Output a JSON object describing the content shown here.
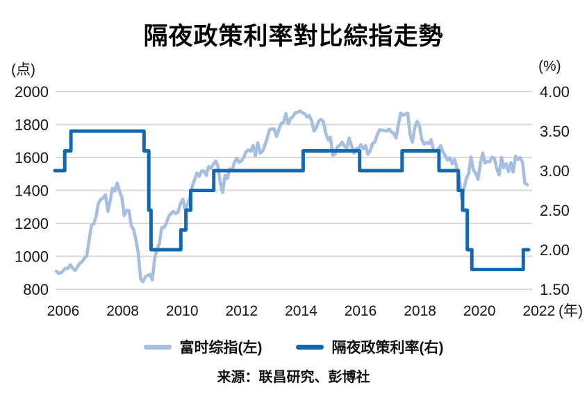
{
  "page": {
    "title": "隔夜政策利率對比綜指走勢",
    "source": "来源：联昌研究、彭博社"
  },
  "chart_data": {
    "type": "line",
    "title": "隔夜政策利率對比綜指走勢",
    "grid": true,
    "grid_color": "#d9d9d9",
    "legend_position": "bottom",
    "source": "来源：联昌研究、彭博社",
    "left_axis": {
      "unit": "(点)",
      "ticks": [
        2000,
        1800,
        1600,
        1400,
        1200,
        1000,
        800
      ],
      "range": [
        800,
        2000
      ]
    },
    "right_axis": {
      "unit": "(%)",
      "ticks": [
        4.0,
        3.5,
        3.0,
        2.5,
        2.0,
        1.5
      ],
      "range": [
        1.5,
        4.0
      ]
    },
    "x_axis": {
      "tick_years": [
        2006,
        2008,
        2010,
        2012,
        2014,
        2016,
        2018,
        2020,
        2022
      ],
      "suffix": "(年)",
      "range": [
        2005.7,
        2022.6
      ]
    },
    "series": [
      {
        "name": "富时综指(左)",
        "axis": "left",
        "type": "line",
        "color": "#a6bedf",
        "x_start": 2005.75,
        "x_step": 0.0833333,
        "values": [
          910,
          897,
          900,
          914,
          928,
          926,
          949,
          927,
          914,
          935,
          958,
          967,
          988,
          1003,
          1096,
          1189,
          1196,
          1246,
          1322,
          1346,
          1354,
          1373,
          1273,
          1336,
          1413,
          1396,
          1445,
          1393,
          1357,
          1247,
          1280,
          1276,
          1186,
          1163,
          1100,
          1018,
          863,
          845,
          876,
          884,
          890,
          857,
          990,
          1044,
          1075,
          1175,
          1174,
          1202,
          1243,
          1259,
          1272,
          1259,
          1270,
          1320,
          1346,
          1285,
          1314,
          1360,
          1422,
          1463,
          1505,
          1485,
          1518,
          1519,
          1491,
          1545,
          1534,
          1558,
          1579,
          1548,
          1447,
          1387,
          1491,
          1472,
          1530,
          1521,
          1569,
          1596,
          1570,
          1580,
          1599,
          1635,
          1646,
          1637,
          1673,
          1610,
          1689,
          1627,
          1637,
          1672,
          1717,
          1769,
          1774,
          1773,
          1727,
          1769,
          1807,
          1813,
          1867,
          1804,
          1836,
          1849,
          1871,
          1873,
          1883,
          1871,
          1866,
          1846,
          1855,
          1821,
          1761,
          1781,
          1821,
          1831,
          1818,
          1747,
          1707,
          1723,
          1612,
          1621,
          1666,
          1672,
          1693,
          1668,
          1655,
          1718,
          1673,
          1626,
          1654,
          1653,
          1678,
          1652,
          1673,
          1619,
          1642,
          1685,
          1694,
          1740,
          1768,
          1766,
          1764,
          1760,
          1773,
          1755,
          1747,
          1718,
          1797,
          1869,
          1856,
          1863,
          1870,
          1740,
          1692,
          1784,
          1820,
          1793,
          1709,
          1680,
          1691,
          1684,
          1708,
          1644,
          1642,
          1651,
          1672,
          1635,
          1612,
          1584,
          1598,
          1562,
          1589,
          1531,
          1483,
          1351,
          1408,
          1473,
          1501,
          1603,
          1525,
          1504,
          1467,
          1562,
          1627,
          1566,
          1577,
          1574,
          1602,
          1594,
          1532,
          1494,
          1601,
          1538,
          1562,
          1514,
          1568,
          1512,
          1608,
          1587,
          1600,
          1570,
          1444,
          1434
        ]
      },
      {
        "name": "隔夜政策利率(右)",
        "axis": "right",
        "type": "step",
        "color": "#1269b2",
        "breakpoints": [
          [
            2005.7,
            3.0
          ],
          [
            2006.05,
            3.25
          ],
          [
            2006.27,
            3.5
          ],
          [
            2008.87,
            3.25
          ],
          [
            2009.04,
            2.5
          ],
          [
            2009.12,
            2.0
          ],
          [
            2010.18,
            2.25
          ],
          [
            2010.36,
            2.5
          ],
          [
            2010.53,
            2.75
          ],
          [
            2011.35,
            3.0
          ],
          [
            2014.53,
            3.25
          ],
          [
            2016.54,
            3.0
          ],
          [
            2018.05,
            3.25
          ],
          [
            2019.36,
            3.0
          ],
          [
            2020.05,
            2.75
          ],
          [
            2020.2,
            2.5
          ],
          [
            2020.37,
            2.0
          ],
          [
            2020.53,
            1.75
          ],
          [
            2022.36,
            2.0
          ],
          [
            2022.55,
            2.0
          ]
        ]
      }
    ]
  }
}
